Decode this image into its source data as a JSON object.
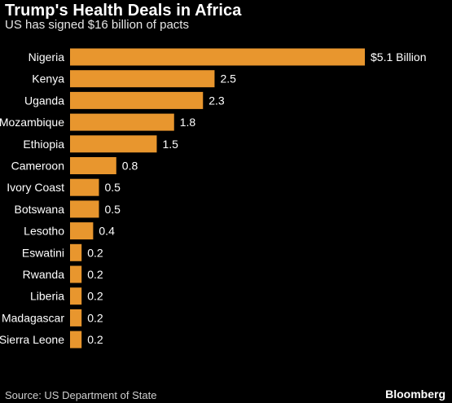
{
  "header": {
    "title": "Trump's Health Deals in Africa",
    "subtitle": "US has signed $16 billion of pacts"
  },
  "footer": {
    "source": "Source: US Department of State",
    "brand": "Bloomberg"
  },
  "colors": {
    "bar": "#E8962E",
    "background": "#000000",
    "text": "#FFFFFF"
  },
  "chart_data": {
    "type": "bar",
    "orientation": "horizontal",
    "title": "Trump's Health Deals in Africa",
    "subtitle": "US has signed $16 billion of pacts",
    "categories": [
      "Nigeria",
      "Kenya",
      "Uganda",
      "Mozambique",
      "Ethiopia",
      "Cameroon",
      "Ivory Coast",
      "Botswana",
      "Lesotho",
      "Eswatini",
      "Rwanda",
      "Liberia",
      "Madagascar",
      "Sierra Leone"
    ],
    "values": [
      5.1,
      2.5,
      2.3,
      1.8,
      1.5,
      0.8,
      0.5,
      0.5,
      0.4,
      0.2,
      0.2,
      0.2,
      0.2,
      0.2
    ],
    "data_labels": [
      "$5.1 Billion",
      "2.5",
      "2.3",
      "1.8",
      "1.5",
      "0.8",
      "0.5",
      "0.5",
      "0.4",
      "0.2",
      "0.2",
      "0.2",
      "0.2",
      "0.2"
    ],
    "xlim": [
      0,
      5.1
    ],
    "grid": false,
    "legend": "none"
  }
}
